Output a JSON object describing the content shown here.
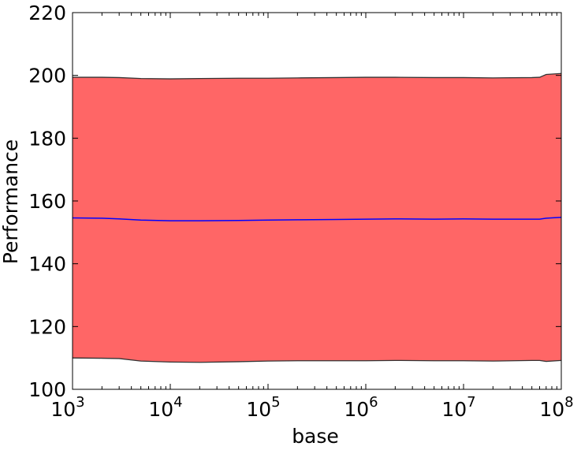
{
  "chart_data": {
    "type": "area",
    "title": "",
    "xlabel": "base",
    "ylabel": "Performance",
    "xscale": "log",
    "xlim": [
      1000,
      100000000
    ],
    "ylim": [
      100,
      220
    ],
    "grid": false,
    "x": [
      1000,
      2000,
      3000,
      5000,
      10000,
      20000,
      50000,
      100000,
      200000,
      500000,
      1000000,
      2000000,
      5000000,
      10000000,
      20000000,
      50000000,
      60000000,
      70000000,
      100000000
    ],
    "series": [
      {
        "role": "mean",
        "color": "#0000ff",
        "values": [
          154.6,
          154.5,
          154.3,
          153.9,
          153.7,
          153.7,
          153.8,
          153.9,
          154.0,
          154.1,
          154.2,
          154.3,
          154.2,
          154.3,
          154.2,
          154.2,
          154.2,
          154.5,
          154.8
        ]
      },
      {
        "role": "upper",
        "color": "#333333",
        "values": [
          199.4,
          199.4,
          199.3,
          199.0,
          198.9,
          199.0,
          199.1,
          199.1,
          199.2,
          199.3,
          199.4,
          199.4,
          199.3,
          199.3,
          199.2,
          199.3,
          199.4,
          200.3,
          200.6
        ]
      },
      {
        "role": "lower",
        "color": "#333333",
        "values": [
          110.0,
          109.9,
          109.8,
          109.0,
          108.7,
          108.6,
          108.8,
          109.0,
          109.1,
          109.1,
          109.1,
          109.2,
          109.1,
          109.1,
          109.0,
          109.2,
          109.2,
          108.9,
          109.2
        ]
      }
    ],
    "band_color": "#ff6666",
    "x_ticks": [
      {
        "value": 1000,
        "base": "10",
        "exp": "3"
      },
      {
        "value": 10000,
        "base": "10",
        "exp": "4"
      },
      {
        "value": 100000,
        "base": "10",
        "exp": "5"
      },
      {
        "value": 1000000,
        "base": "10",
        "exp": "6"
      },
      {
        "value": 10000000,
        "base": "10",
        "exp": "7"
      },
      {
        "value": 100000000,
        "base": "10",
        "exp": "8"
      }
    ],
    "y_ticks": [
      100,
      120,
      140,
      160,
      180,
      200,
      220
    ]
  }
}
